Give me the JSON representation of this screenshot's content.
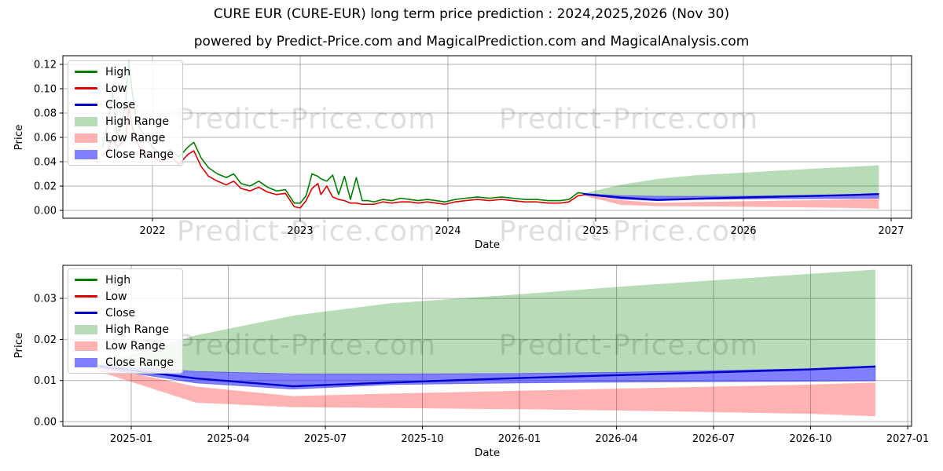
{
  "title": "CURE EUR (CURE-EUR) long term price prediction : 2024,2025,2026 (Nov 30)",
  "subtitle": "powered by Predict-Price.com and MagicalPrediction.com and MagicalAnalysis.com",
  "watermark": {
    "text": "Predict-Price.com"
  },
  "colors": {
    "high_line": "#008000",
    "low_line": "#dd0000",
    "close_line": "#0000cc",
    "high_range_fill": "rgba(0,128,0,0.28)",
    "low_range_fill": "rgba(255,0,0,0.30)",
    "close_range_fill": "rgba(0,0,255,0.50)",
    "close_range_edge": "rgba(60,60,230,0.65)",
    "grid": "#b0b0b0",
    "spine": "#000000",
    "tick_text": "#000000"
  },
  "legend": {
    "items": [
      {
        "label": "High",
        "swatch": "line",
        "color_key": "high_line"
      },
      {
        "label": "Low",
        "swatch": "line",
        "color_key": "low_line"
      },
      {
        "label": "Close",
        "swatch": "line",
        "color_key": "close_line"
      },
      {
        "label": "High Range",
        "swatch": "patch",
        "color_key": "high_range_fill"
      },
      {
        "label": "Low Range",
        "swatch": "patch",
        "color_key": "low_range_fill"
      },
      {
        "label": "Close Range",
        "swatch": "patch",
        "color_key": "close_range_fill"
      }
    ]
  },
  "chart_data": [
    {
      "type": "line",
      "name": "history-and-forecast",
      "xlabel": "Date",
      "ylabel": "Price",
      "x_ticks": [
        "2022",
        "2023",
        "2024",
        "2025",
        "2026",
        "2027"
      ],
      "y_ticks": [
        "0.00",
        "0.02",
        "0.04",
        "0.06",
        "0.08",
        "0.10",
        "0.12"
      ],
      "ylim": [
        -0.0065,
        0.127
      ],
      "grid": true,
      "legend_position": "upper-left",
      "historical": {
        "x_decimal_year": [
          2021.66,
          2021.7,
          2021.73,
          2021.76,
          2021.79,
          2021.82,
          2021.84,
          2021.86,
          2021.89,
          2021.92,
          2021.96,
          2022.0,
          2022.06,
          2022.12,
          2022.18,
          2022.24,
          2022.28,
          2022.33,
          2022.38,
          2022.44,
          2022.5,
          2022.55,
          2022.6,
          2022.66,
          2022.72,
          2022.78,
          2022.84,
          2022.9,
          2022.96,
          2023.0,
          2023.04,
          2023.08,
          2023.12,
          2023.14,
          2023.18,
          2023.22,
          2023.26,
          2023.3,
          2023.34,
          2023.38,
          2023.42,
          2023.46,
          2023.5,
          2023.56,
          2023.62,
          2023.68,
          2023.74,
          2023.8,
          2023.86,
          2023.92,
          2023.98,
          2024.05,
          2024.12,
          2024.2,
          2024.28,
          2024.36,
          2024.44,
          2024.52,
          2024.6,
          2024.68,
          2024.76,
          2024.82,
          2024.88,
          2024.92
        ],
        "high": [
          0.052,
          0.072,
          0.097,
          0.062,
          0.07,
          0.09,
          0.123,
          0.1,
          0.075,
          0.066,
          0.06,
          0.052,
          0.046,
          0.05,
          0.044,
          0.052,
          0.056,
          0.043,
          0.035,
          0.03,
          0.027,
          0.03,
          0.022,
          0.02,
          0.024,
          0.019,
          0.016,
          0.017,
          0.006,
          0.006,
          0.012,
          0.03,
          0.028,
          0.026,
          0.024,
          0.029,
          0.013,
          0.028,
          0.009,
          0.027,
          0.008,
          0.008,
          0.007,
          0.009,
          0.008,
          0.01,
          0.009,
          0.008,
          0.009,
          0.008,
          0.007,
          0.009,
          0.01,
          0.011,
          0.01,
          0.011,
          0.01,
          0.009,
          0.009,
          0.008,
          0.008,
          0.009,
          0.0145,
          0.014
        ],
        "low": [
          0.045,
          0.05,
          0.06,
          0.052,
          0.055,
          0.06,
          0.085,
          0.07,
          0.058,
          0.05,
          0.046,
          0.044,
          0.04,
          0.044,
          0.038,
          0.046,
          0.049,
          0.036,
          0.028,
          0.024,
          0.021,
          0.024,
          0.018,
          0.016,
          0.019,
          0.015,
          0.013,
          0.014,
          0.003,
          0.002,
          0.008,
          0.018,
          0.022,
          0.013,
          0.02,
          0.011,
          0.009,
          0.008,
          0.006,
          0.006,
          0.005,
          0.005,
          0.005,
          0.007,
          0.006,
          0.007,
          0.007,
          0.006,
          0.007,
          0.006,
          0.005,
          0.007,
          0.008,
          0.009,
          0.008,
          0.009,
          0.008,
          0.007,
          0.007,
          0.006,
          0.006,
          0.007,
          0.012,
          0.0128
        ]
      },
      "forecast": {
        "dates": [
          "2024-12",
          "2025-03",
          "2025-06",
          "2025-09",
          "2026-01",
          "2026-04",
          "2026-07",
          "2026-10",
          "2026-12"
        ],
        "close": [
          0.0135,
          0.0105,
          0.0086,
          0.0095,
          0.0106,
          0.0113,
          0.012,
          0.0127,
          0.0134
        ],
        "high_range_top": [
          0.014,
          0.021,
          0.0258,
          0.0288,
          0.031,
          0.0328,
          0.0344,
          0.036,
          0.037
        ],
        "low_range_top": [
          0.0135,
          0.0085,
          0.0062,
          0.0068,
          0.0075,
          0.008,
          0.0085,
          0.009,
          0.0095
        ],
        "low_range_bottom": [
          0.0122,
          0.0046,
          0.0035,
          0.0033,
          0.003,
          0.0027,
          0.0023,
          0.0019,
          0.0013
        ],
        "close_range_top": [
          0.0137,
          0.0122,
          0.0116,
          0.0116,
          0.0117,
          0.012,
          0.0124,
          0.0129,
          0.0136
        ],
        "close_range_bottom": [
          0.0131,
          0.0094,
          0.0079,
          0.009,
          0.0094,
          0.0096,
          0.0097,
          0.0098,
          0.0099
        ]
      }
    },
    {
      "type": "line",
      "name": "forecast-detail",
      "xlabel": "Date",
      "ylabel": "Price",
      "x_ticks": [
        "2025-01",
        "2025-04",
        "2025-07",
        "2025-10",
        "2026-01",
        "2026-04",
        "2026-07",
        "2026-10",
        "2027-01"
      ],
      "y_ticks": [
        "0.00",
        "0.01",
        "0.02",
        "0.03"
      ],
      "ylim": [
        -0.0011,
        0.0383
      ],
      "grid": true,
      "legend_position": "upper-left",
      "forecast": {
        "dates": [
          "2024-12",
          "2025-03",
          "2025-06",
          "2025-09",
          "2026-01",
          "2026-04",
          "2026-07",
          "2026-10",
          "2026-12"
        ],
        "close": [
          0.0135,
          0.0105,
          0.0086,
          0.0095,
          0.0106,
          0.0113,
          0.012,
          0.0127,
          0.0134
        ],
        "high_range_top": [
          0.014,
          0.021,
          0.0258,
          0.0288,
          0.031,
          0.0328,
          0.0344,
          0.036,
          0.037
        ],
        "low_range_top": [
          0.0135,
          0.0085,
          0.0062,
          0.0068,
          0.0075,
          0.008,
          0.0085,
          0.009,
          0.0095
        ],
        "low_range_bottom": [
          0.0122,
          0.0046,
          0.0035,
          0.0033,
          0.003,
          0.0027,
          0.0023,
          0.0019,
          0.0013
        ],
        "close_range_top": [
          0.0137,
          0.0122,
          0.0116,
          0.0116,
          0.0117,
          0.012,
          0.0124,
          0.0129,
          0.0136
        ],
        "close_range_bottom": [
          0.0131,
          0.0094,
          0.0079,
          0.009,
          0.0094,
          0.0096,
          0.0097,
          0.0098,
          0.0099
        ]
      }
    }
  ]
}
